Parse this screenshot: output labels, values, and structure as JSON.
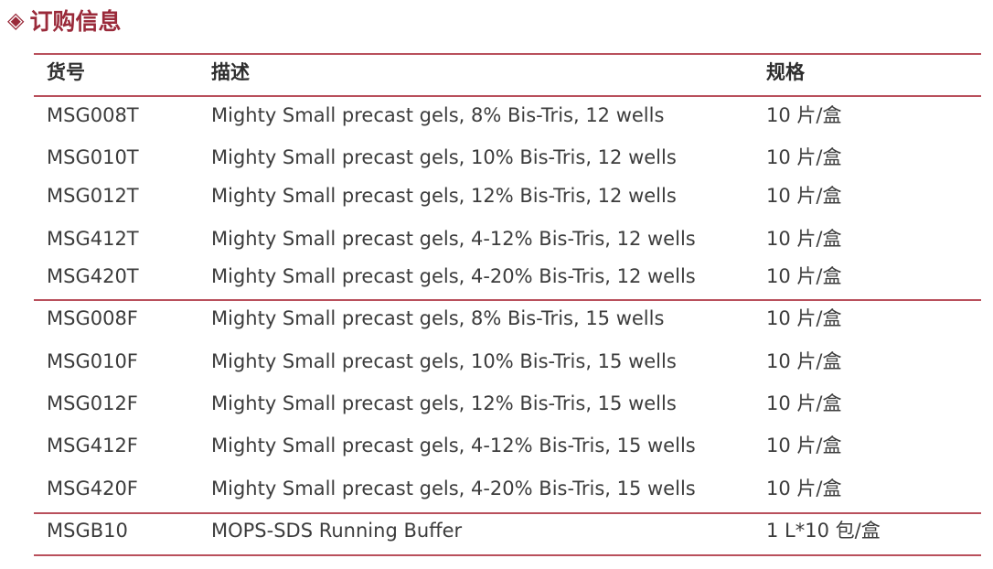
{
  "section": {
    "icon": "diamond-icon",
    "icon_glyph": "◈",
    "title": "订购信息"
  },
  "colors": {
    "accent": "#9a2a3a",
    "rule": "#b9505c",
    "text": "#3c3c3c"
  },
  "table": {
    "headers": [
      "货号",
      "描述",
      "规格"
    ],
    "rows": [
      [
        "MSG008T",
        "Mighty Small precast gels, 8% Bis-Tris, 12 wells",
        "10 片/盒"
      ],
      [
        "MSG010T",
        "Mighty Small precast gels, 10% Bis-Tris, 12 wells",
        "10 片/盒"
      ],
      [
        "MSG012T",
        "Mighty Small precast gels, 12% Bis-Tris, 12 wells",
        "10 片/盒"
      ],
      [
        "MSG412T",
        "Mighty Small precast gels, 4-12% Bis-Tris, 12 wells",
        "10 片/盒"
      ],
      [
        "MSG420T",
        "Mighty Small precast gels, 4-20% Bis-Tris, 12 wells",
        "10 片/盒"
      ],
      [
        "MSG008F",
        "Mighty Small precast gels, 8% Bis-Tris, 15 wells",
        "10 片/盒"
      ],
      [
        "MSG010F",
        "Mighty Small precast gels, 10% Bis-Tris, 15 wells",
        "10 片/盒"
      ],
      [
        "MSG012F",
        "Mighty Small precast gels, 12% Bis-Tris, 15 wells",
        "10 片/盒"
      ],
      [
        "MSG412F",
        "Mighty Small precast gels, 4-12% Bis-Tris, 15 wells",
        "10 片/盒"
      ],
      [
        "MSG420F",
        "Mighty Small precast gels, 4-20% Bis-Tris, 15 wells",
        "10 片/盒"
      ],
      [
        "MSGB10",
        "MOPS-SDS Running Buffer",
        "1 L*10 包/盒"
      ]
    ]
  }
}
